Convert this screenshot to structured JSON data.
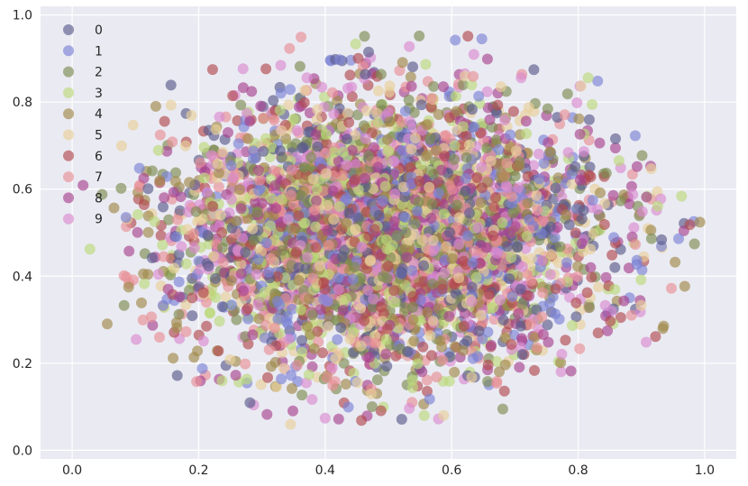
{
  "chart_data": {
    "type": "scatter",
    "title": "",
    "xlabel": "",
    "ylabel": "",
    "xlim": [
      -0.05,
      1.05
    ],
    "ylim": [
      -0.02,
      1.02
    ],
    "xticks": [
      0.0,
      0.2,
      0.4,
      0.6,
      0.8,
      1.0
    ],
    "yticks": [
      0.0,
      0.2,
      0.4,
      0.6,
      0.8,
      1.0
    ],
    "xtick_labels": [
      "0.0",
      "0.2",
      "0.4",
      "0.6",
      "0.8",
      "1.0"
    ],
    "ytick_labels": [
      "0.0",
      "0.2",
      "0.4",
      "0.6",
      "0.8",
      "1.0"
    ],
    "grid": true,
    "legend_position": "top-left",
    "point_opacity": 0.65,
    "distribution": "approximately gaussian blob centered near (0.5, 0.5) with sd ~0.17 in x and ~0.15 in y, clipped to a disk",
    "series": [
      {
        "name": "0",
        "color": "#5a5a8c",
        "approx_points": 450
      },
      {
        "name": "1",
        "color": "#7b82d6",
        "approx_points": 450
      },
      {
        "name": "2",
        "color": "#7d8c52",
        "approx_points": 450
      },
      {
        "name": "3",
        "color": "#bcd97a",
        "approx_points": 450
      },
      {
        "name": "4",
        "color": "#a0884a",
        "approx_points": 450
      },
      {
        "name": "5",
        "color": "#e8cf9a",
        "approx_points": 450
      },
      {
        "name": "6",
        "color": "#b04a4e",
        "approx_points": 450
      },
      {
        "name": "7",
        "color": "#e88f95",
        "approx_points": 450
      },
      {
        "name": "8",
        "color": "#a8448f",
        "approx_points": 450
      },
      {
        "name": "9",
        "color": "#d88ad0",
        "approx_points": 450
      }
    ]
  }
}
